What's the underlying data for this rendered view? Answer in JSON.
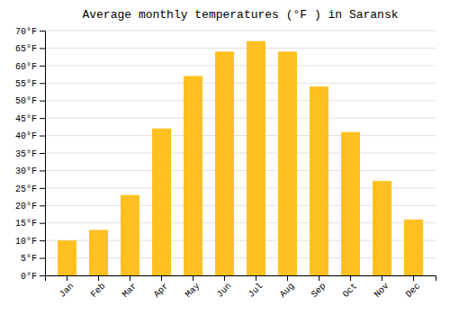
{
  "chart_data": {
    "type": "bar",
    "title": "Average monthly temperatures (°F ) in Saransk",
    "categories": [
      "Jan",
      "Feb",
      "Mar",
      "Apr",
      "May",
      "Jun",
      "Jul",
      "Aug",
      "Sep",
      "Oct",
      "Nov",
      "Dec"
    ],
    "values": [
      10,
      13,
      23,
      42,
      57,
      64,
      67,
      64,
      54,
      41,
      27,
      16
    ],
    "color": "#FFC020",
    "ylim": [
      0,
      70
    ],
    "yticks": [
      {
        "value": 0,
        "label": "0°F"
      },
      {
        "value": 5,
        "label": "5°F"
      },
      {
        "value": 10,
        "label": "10°F"
      },
      {
        "value": 15,
        "label": "15°F"
      },
      {
        "value": 20,
        "label": "20°F"
      },
      {
        "value": 25,
        "label": "25°F"
      },
      {
        "value": 30,
        "label": "30°F"
      },
      {
        "value": 35,
        "label": "35°F"
      },
      {
        "value": 40,
        "label": "40°F"
      },
      {
        "value": 45,
        "label": "45°F"
      },
      {
        "value": 50,
        "label": "50°F"
      },
      {
        "value": 55,
        "label": "55°F"
      },
      {
        "value": 60,
        "label": "60°F"
      },
      {
        "value": 65,
        "label": "65°F"
      },
      {
        "value": 70,
        "label": "70°F"
      }
    ],
    "grid": true
  }
}
